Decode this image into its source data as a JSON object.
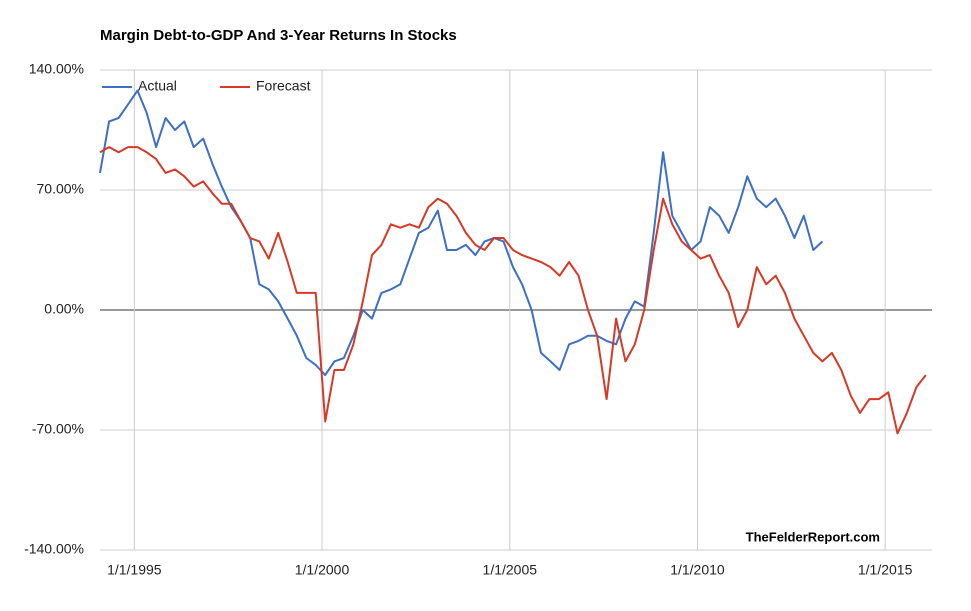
{
  "chart_data": {
    "type": "line",
    "title": "Margin Debt-to-GDP And 3-Year Returns In Stocks",
    "annotations": [
      "TheFelderReport.com"
    ],
    "legend": "top-left",
    "grid": true,
    "x": [
      "1994-02-01",
      "1994-05-01",
      "1994-08-01",
      "1994-11-01",
      "1995-02-01",
      "1995-05-01",
      "1995-08-01",
      "1995-11-01",
      "1996-02-01",
      "1996-05-01",
      "1996-08-01",
      "1996-11-01",
      "1997-02-01",
      "1997-05-01",
      "1997-08-01",
      "1997-11-01",
      "1998-02-01",
      "1998-05-01",
      "1998-08-01",
      "1998-11-01",
      "1999-02-01",
      "1999-05-01",
      "1999-08-01",
      "1999-11-01",
      "2000-02-01",
      "2000-05-01",
      "2000-08-01",
      "2000-11-01",
      "2001-02-01",
      "2001-05-01",
      "2001-08-01",
      "2001-11-01",
      "2002-02-01",
      "2002-05-01",
      "2002-08-01",
      "2002-11-01",
      "2003-02-01",
      "2003-05-01",
      "2003-08-01",
      "2003-11-01",
      "2004-02-01",
      "2004-05-01",
      "2004-08-01",
      "2004-11-01",
      "2005-02-01",
      "2005-05-01",
      "2005-08-01",
      "2005-11-01",
      "2006-02-01",
      "2006-05-01",
      "2006-08-01",
      "2006-11-01",
      "2007-02-01",
      "2007-05-01",
      "2007-08-01",
      "2007-11-01",
      "2008-02-01",
      "2008-05-01",
      "2008-08-01",
      "2008-11-01",
      "2009-02-01",
      "2009-05-01",
      "2009-08-01",
      "2009-11-01",
      "2010-02-01",
      "2010-05-01",
      "2010-08-01",
      "2010-11-01",
      "2011-02-01",
      "2011-05-01",
      "2011-08-01",
      "2011-11-01",
      "2012-02-01",
      "2012-05-01",
      "2012-08-01",
      "2012-11-01",
      "2013-02-01",
      "2013-05-01",
      "2013-08-01",
      "2013-11-01",
      "2014-02-01",
      "2014-05-01",
      "2014-08-01",
      "2014-11-01",
      "2015-02-01",
      "2015-05-01",
      "2015-08-01",
      "2015-11-01",
      "2016-02-01"
    ],
    "series": [
      {
        "name": "Actual",
        "color": "#3d6fc4",
        "values": [
          80,
          110,
          112,
          120,
          128,
          115,
          95,
          112,
          105,
          110,
          95,
          100,
          85,
          72,
          60,
          52,
          42,
          15,
          12,
          5,
          -5,
          -15,
          -28,
          -32,
          -38,
          -30,
          -28,
          -15,
          0,
          -5,
          10,
          12,
          15,
          30,
          45,
          48,
          58,
          35,
          35,
          38,
          32,
          40,
          42,
          40,
          25,
          15,
          0,
          -25,
          -30,
          -35,
          -20,
          -18,
          -15,
          -15,
          -18,
          -20,
          -5,
          5,
          2,
          45,
          92,
          55,
          45,
          35,
          40,
          60,
          55,
          45,
          60,
          78,
          65,
          60,
          65,
          55,
          42,
          55,
          35,
          40,
          null,
          null,
          null,
          null,
          null,
          null,
          null,
          null,
          null,
          null,
          null
        ]
      },
      {
        "name": "Forecast",
        "color": "#d63a26",
        "values": [
          92,
          95,
          92,
          95,
          95,
          92,
          88,
          80,
          82,
          78,
          72,
          75,
          68,
          62,
          62,
          52,
          42,
          40,
          30,
          45,
          28,
          10,
          10,
          10,
          -65,
          -35,
          -35,
          -20,
          5,
          32,
          38,
          50,
          48,
          50,
          48,
          60,
          65,
          62,
          55,
          45,
          38,
          35,
          42,
          42,
          35,
          32,
          30,
          28,
          25,
          20,
          28,
          20,
          0,
          -15,
          -52,
          -5,
          -30,
          -20,
          0,
          35,
          65,
          50,
          40,
          35,
          30,
          32,
          20,
          10,
          -10,
          0,
          25,
          15,
          20,
          10,
          -5,
          -15,
          -25,
          -30,
          -25,
          -35,
          -50,
          -60,
          -52,
          -52,
          -48,
          -72,
          -60,
          -45,
          -38
        ]
      }
    ],
    "xlim": [
      "1994-02-01",
      "2016-04-01"
    ],
    "xticks": [
      {
        "value": "1995-01-01",
        "label": "1/1/1995"
      },
      {
        "value": "2000-01-01",
        "label": "1/1/2000"
      },
      {
        "value": "2005-01-01",
        "label": "1/1/2005"
      },
      {
        "value": "2010-01-01",
        "label": "1/1/2010"
      },
      {
        "value": "2015-01-01",
        "label": "1/1/2015"
      }
    ],
    "ylim": [
      -140,
      140
    ],
    "yticks": [
      {
        "value": -140,
        "label": "-140.00%"
      },
      {
        "value": -70,
        "label": "-70.00%"
      },
      {
        "value": 0,
        "label": "0.00%"
      },
      {
        "value": 70,
        "label": "70.00%"
      },
      {
        "value": 140,
        "label": "140.00%"
      }
    ]
  }
}
